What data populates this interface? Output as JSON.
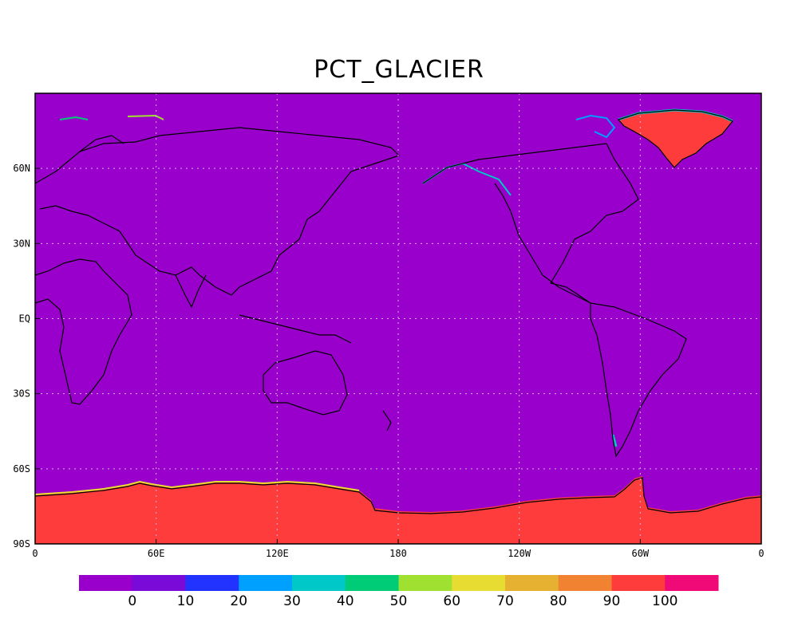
{
  "title": "PCT_GLACIER",
  "map": {
    "background_color": "#9900cc",
    "ice_color": "#ff3c3c",
    "gridline_color": "#d8b0e8",
    "lat_ticks": [
      {
        "lat": 60,
        "label": "60N"
      },
      {
        "lat": 30,
        "label": "30N"
      },
      {
        "lat": 0,
        "label": "EQ"
      },
      {
        "lat": -30,
        "label": "30S"
      },
      {
        "lat": -60,
        "label": "60S"
      },
      {
        "lat": -90,
        "label": "90S"
      }
    ],
    "lon_ticks": [
      {
        "lon": 0,
        "label": "0"
      },
      {
        "lon": 60,
        "label": "60E"
      },
      {
        "lon": 120,
        "label": "120E"
      },
      {
        "lon": 180,
        "label": "180"
      },
      {
        "lon": 240,
        "label": "120W"
      },
      {
        "lon": 300,
        "label": "60W"
      },
      {
        "lon": 360,
        "label": "0"
      }
    ],
    "lon_range": [
      0,
      360
    ],
    "lat_range": [
      -90,
      90
    ],
    "grid": "dotted"
  },
  "colorbar": {
    "colors": [
      "#9900cc",
      "#7a0ad8",
      "#2233ff",
      "#00a0ff",
      "#00c8c8",
      "#00cc77",
      "#a0e030",
      "#e6dc32",
      "#e6b030",
      "#f08232",
      "#ff3c3c",
      "#f00a78"
    ],
    "labels": [
      "0",
      "10",
      "20",
      "30",
      "40",
      "50",
      "60",
      "70",
      "80",
      "90",
      "100"
    ]
  }
}
